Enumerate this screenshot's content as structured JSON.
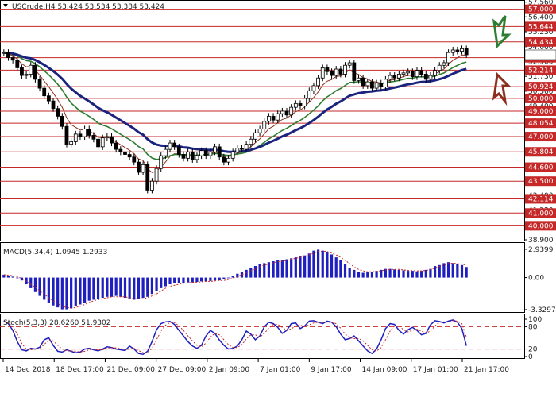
{
  "header": {
    "symbol": "USCrude,H4",
    "ohlc": "53.424 53.534 53.384 53.424"
  },
  "chart_data": [
    {
      "type": "candlestick",
      "title": "USCrude,H4 53.424 53.534 53.384 53.424",
      "ylim": [
        38.9,
        57.6
      ],
      "y_ticks": [
        "57.560",
        "56.400",
        "55.230",
        "54.060",
        "52.900",
        "51.730",
        "50.560",
        "49.400",
        "48.230",
        "47.060",
        "45.900",
        "44.730",
        "43.560",
        "42.400",
        "41.230",
        "40.070",
        "38.900"
      ],
      "levels": [
        "57.000",
        "55.644",
        "54.434",
        "53.194",
        "52.214",
        "50.924",
        "50.000",
        "49.000",
        "48.054",
        "47.000",
        "45.804",
        "44.600",
        "43.500",
        "42.114",
        "41.000",
        "40.000"
      ],
      "x_ticks": [
        "14 Dec 2018",
        "18 Dec 17:00",
        "21 Dec 09:00",
        "27 Dec 09:00",
        "2 Jan 09:00",
        "7 Jan 01:00",
        "9 Jan 17:00",
        "14 Jan 09:00",
        "17 Jan 01:00",
        "21 Jan 17:00"
      ],
      "close": [
        53.6,
        53.2,
        53.0,
        52.4,
        51.8,
        51.9,
        52.6,
        51.5,
        50.8,
        50.2,
        49.8,
        49.2,
        48.6,
        47.8,
        46.4,
        46.6,
        47.2,
        47.0,
        47.6,
        47.1,
        46.8,
        46.2,
        46.9,
        47.0,
        46.5,
        46.0,
        45.8,
        45.6,
        45.4,
        45.0,
        44.2,
        44.8,
        42.8,
        43.5,
        44.5,
        45.5,
        46.0,
        46.5,
        46.2,
        45.6,
        45.3,
        45.8,
        45.2,
        45.5,
        45.9,
        45.5,
        45.8,
        46.2,
        45.4,
        45.0,
        45.3,
        45.8,
        46.1,
        46.0,
        46.4,
        46.8,
        47.3,
        47.6,
        48.2,
        48.6,
        48.3,
        48.8,
        49.0,
        48.7,
        49.3,
        49.6,
        49.4,
        50.0,
        50.6,
        51.0,
        51.6,
        52.4,
        52.1,
        51.8,
        52.3,
        51.9,
        52.6,
        52.8,
        51.4,
        51.6,
        51.0,
        51.3,
        50.8,
        51.2,
        50.9,
        51.5,
        51.8,
        51.6,
        51.9,
        52.0,
        52.1,
        51.7,
        52.2,
        51.9,
        51.5,
        51.8,
        52.2,
        52.6,
        52.8,
        53.6,
        53.8,
        53.7,
        53.9,
        53.424
      ]
    },
    {
      "type": "bar",
      "title": "MACD(5,34,4) 1.0945 1.2933",
      "ylim": [
        -3.5,
        3.1
      ],
      "y_ticks": [
        "2.9399",
        "0.00",
        "-3.3297"
      ],
      "values": [
        0.3,
        0.2,
        0.1,
        0.0,
        -0.3,
        -0.7,
        -1.1,
        -1.5,
        -1.9,
        -2.3,
        -2.6,
        -2.9,
        -3.1,
        -3.3,
        -3.3,
        -3.2,
        -3.0,
        -2.8,
        -2.6,
        -2.4,
        -2.3,
        -2.2,
        -2.1,
        -2.0,
        -2.0,
        -1.9,
        -2.0,
        -2.1,
        -2.2,
        -2.3,
        -2.2,
        -2.1,
        -2.0,
        -1.7,
        -1.4,
        -1.1,
        -0.9,
        -0.7,
        -0.6,
        -0.55,
        -0.55,
        -0.5,
        -0.5,
        -0.45,
        -0.4,
        -0.4,
        -0.35,
        -0.3,
        -0.3,
        -0.2,
        0.0,
        0.2,
        0.4,
        0.6,
        0.8,
        1.0,
        1.2,
        1.4,
        1.5,
        1.6,
        1.7,
        1.8,
        1.8,
        1.9,
        2.0,
        2.1,
        2.2,
        2.3,
        2.5,
        2.8,
        2.9,
        2.8,
        2.6,
        2.4,
        2.1,
        1.8,
        1.4,
        1.0,
        0.8,
        0.6,
        0.5,
        0.55,
        0.6,
        0.7,
        0.8,
        0.9,
        0.9,
        0.85,
        0.8,
        0.75,
        0.7,
        0.7,
        0.65,
        0.7,
        0.8,
        0.9,
        1.2,
        1.3,
        1.5,
        1.6,
        1.5,
        1.4,
        1.3,
        1.1
      ],
      "signal": [
        0.3,
        0.25,
        0.2,
        0.1,
        -0.1,
        -0.4,
        -0.7,
        -1.0,
        -1.4,
        -1.7,
        -2.1,
        -2.4,
        -2.7,
        -3.0,
        -3.1,
        -3.2,
        -3.1,
        -3.0,
        -2.8,
        -2.6,
        -2.4,
        -2.3,
        -2.2,
        -2.1,
        -2.0,
        -2.0,
        -2.0,
        -2.0,
        -2.1,
        -2.2,
        -2.2,
        -2.2,
        -2.1,
        -1.9,
        -1.7,
        -1.4,
        -1.1,
        -0.9,
        -0.8,
        -0.7,
        -0.6,
        -0.55,
        -0.5,
        -0.5,
        -0.45,
        -0.4,
        -0.4,
        -0.35,
        -0.3,
        -0.3,
        -0.2,
        -0.05,
        0.1,
        0.3,
        0.5,
        0.7,
        0.9,
        1.1,
        1.3,
        1.4,
        1.55,
        1.65,
        1.7,
        1.8,
        1.9,
        2.0,
        2.1,
        2.2,
        2.35,
        2.55,
        2.7,
        2.75,
        2.7,
        2.55,
        2.35,
        2.1,
        1.8,
        1.45,
        1.1,
        0.85,
        0.7,
        0.6,
        0.6,
        0.65,
        0.7,
        0.8,
        0.85,
        0.85,
        0.85,
        0.8,
        0.75,
        0.72,
        0.7,
        0.7,
        0.75,
        0.82,
        1.0,
        1.15,
        1.3,
        1.45,
        1.5,
        1.45,
        1.4,
        1.29
      ]
    },
    {
      "type": "line",
      "title": "Stoch(5,3,3) 28.6260 51.9302",
      "ylim": [
        0,
        100
      ],
      "y_ticks": [
        "100",
        "80",
        "20",
        "0"
      ],
      "levels": [
        80,
        20
      ],
      "series": [
        {
          "values": [
            95,
            88,
            70,
            40,
            18,
            15,
            22,
            20,
            25,
            45,
            50,
            30,
            14,
            12,
            18,
            14,
            10,
            12,
            20,
            22,
            18,
            15,
            20,
            26,
            24,
            20,
            18,
            16,
            28,
            20,
            8,
            6,
            14,
            40,
            72,
            88,
            93,
            94,
            86,
            70,
            55,
            40,
            28,
            22,
            30,
            55,
            70,
            62,
            44,
            30,
            20,
            22,
            28,
            45,
            68,
            60,
            45,
            55,
            80,
            92,
            88,
            78,
            62,
            70,
            88,
            90,
            75,
            82,
            95,
            96,
            92,
            88,
            95,
            92,
            80,
            60,
            45,
            48,
            55,
            42,
            28,
            15,
            8,
            20,
            45,
            75,
            88,
            86,
            70,
            60,
            72,
            78,
            70,
            58,
            62,
            85,
            96,
            94,
            90,
            95,
            98,
            92,
            75,
            28.626
          ]
        },
        {
          "values": [
            94,
            90,
            80,
            60,
            35,
            20,
            18,
            20,
            22,
            32,
            45,
            42,
            30,
            20,
            15,
            15,
            14,
            12,
            14,
            18,
            20,
            18,
            18,
            22,
            24,
            23,
            21,
            18,
            20,
            22,
            16,
            10,
            10,
            22,
            45,
            68,
            84,
            91,
            91,
            82,
            70,
            55,
            42,
            30,
            26,
            36,
            52,
            62,
            58,
            45,
            32,
            24,
            24,
            32,
            47,
            58,
            58,
            52,
            62,
            76,
            86,
            86,
            78,
            70,
            74,
            82,
            84,
            80,
            85,
            90,
            92,
            91,
            92,
            92,
            88,
            76,
            60,
            50,
            48,
            48,
            42,
            30,
            18,
            14,
            24,
            45,
            68,
            82,
            82,
            72,
            66,
            70,
            73,
            68,
            63,
            68,
            82,
            92,
            93,
            92,
            96,
            95,
            88,
            51.93
          ]
        }
      ]
    }
  ]
}
